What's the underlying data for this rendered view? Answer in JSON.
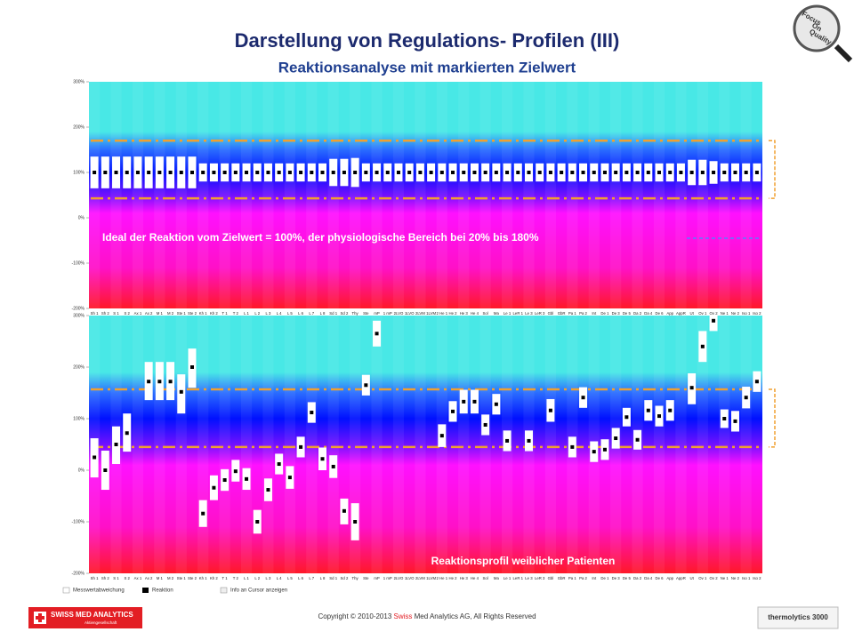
{
  "header": {
    "title": "Darstellung von Regulations- Profilen (III)",
    "subtitle": "Reaktionsanalyse mit markierten Zielwert"
  },
  "badge": [
    "Focus",
    "On",
    "Quality"
  ],
  "chart_data": [
    {
      "type": "range-dot",
      "annotation": "Ideal der Reaktion vom Zielwert = 100%, der physiologische Bereich bei 20% bis 180%",
      "categories": [
        "Sh 1",
        "Sh 2",
        "S 1",
        "S 2",
        "Ax 1",
        "Ax 2",
        "M 1",
        "M 2",
        "Ste 1",
        "Ste 2",
        "Kh 1",
        "Kh 2",
        "T 1",
        "T 2",
        "L 1",
        "L 2",
        "L 3",
        "L 4",
        "L 5",
        "L 6",
        "L 7",
        "L 8",
        "Sd 1",
        "Sd 2",
        "Thy",
        "Ste",
        "mP",
        "1 mP",
        "2LVO",
        "1LVO",
        "2LVM",
        "1LVM",
        "2 He 1",
        "He 2",
        "He 3",
        "He 4",
        "Sol",
        "Ma",
        "Le 1",
        "LeR 1",
        "Le 3",
        "LeR 3",
        "Gbl",
        "GbR",
        "Pa 1",
        "Pa 2",
        "Int",
        "De 1",
        "De 3",
        "De 5",
        "Da 2",
        "Da 4",
        "De 6",
        "App",
        "AppR",
        "Ut",
        "Ov 1",
        "Ov 2",
        "Ne 1",
        "Ne 2",
        "Iso 1",
        "Iso 2"
      ],
      "values": [
        100,
        100,
        100,
        100,
        100,
        100,
        100,
        100,
        100,
        100,
        100,
        100,
        100,
        100,
        100,
        100,
        100,
        100,
        100,
        100,
        100,
        100,
        100,
        100,
        100,
        100,
        100,
        100,
        100,
        100,
        100,
        100,
        100,
        100,
        100,
        100,
        100,
        100,
        100,
        100,
        100,
        100,
        100,
        100,
        100,
        100,
        100,
        100,
        100,
        100,
        100,
        100,
        100,
        100,
        100,
        100,
        100,
        100,
        100,
        100,
        100,
        100
      ],
      "range_low": [
        65,
        65,
        65,
        65,
        65,
        65,
        65,
        65,
        65,
        65,
        80,
        80,
        80,
        80,
        80,
        80,
        80,
        80,
        80,
        80,
        80,
        80,
        70,
        70,
        68,
        80,
        80,
        80,
        80,
        80,
        80,
        80,
        80,
        80,
        80,
        80,
        80,
        80,
        80,
        80,
        80,
        80,
        80,
        80,
        80,
        80,
        80,
        80,
        80,
        80,
        80,
        80,
        80,
        80,
        80,
        72,
        72,
        75,
        80,
        80,
        80,
        80
      ],
      "range_high": [
        135,
        135,
        135,
        135,
        135,
        135,
        135,
        135,
        135,
        135,
        120,
        120,
        120,
        120,
        120,
        120,
        120,
        120,
        120,
        120,
        120,
        120,
        130,
        130,
        132,
        120,
        120,
        120,
        120,
        120,
        120,
        120,
        120,
        120,
        120,
        120,
        120,
        120,
        120,
        120,
        120,
        120,
        120,
        120,
        120,
        120,
        120,
        120,
        120,
        120,
        120,
        120,
        120,
        120,
        120,
        128,
        128,
        125,
        120,
        120,
        120,
        120
      ],
      "reference_lines": [
        170,
        43
      ],
      "box_color": "#ffffff",
      "dot_color": "#000000",
      "reference_color": "#f0a030",
      "ylim": [
        -200,
        300
      ],
      "yticks": [
        {
          "value": -200,
          "label": "-200%"
        },
        {
          "value": -100,
          "label": "-100%"
        },
        {
          "value": 0,
          "label": "0%"
        },
        {
          "value": 100,
          "label": "100%"
        },
        {
          "value": 200,
          "label": "200%"
        },
        {
          "value": 300,
          "label": "300%"
        }
      ],
      "grid": false
    },
    {
      "type": "range-dot",
      "annotation": "Reaktionsprofil weiblicher Patienten",
      "categories": [
        "Sh 1",
        "Sh 2",
        "S 1",
        "S 2",
        "Ax 1",
        "Ax 2",
        "M 1",
        "M 2",
        "Ste 1",
        "Ste 2",
        "Kh 1",
        "Kh 2",
        "T 1",
        "T 2",
        "L 1",
        "L 2",
        "L 3",
        "L 4",
        "L 5",
        "L 6",
        "L 7",
        "L 8",
        "Sd 1",
        "Sd 2",
        "Thy",
        "Ste",
        "mP",
        "1 mP",
        "2LVO",
        "1LVO",
        "2LVM",
        "1LVM",
        "2 He 1",
        "He 2",
        "He 3",
        "He 4",
        "Sol",
        "Ma",
        "Le 1",
        "LeR 1",
        "Le 3",
        "LeR 3",
        "Gbl",
        "GbR",
        "Pa 1",
        "Pa 2",
        "Int",
        "De 1",
        "De 3",
        "De 5",
        "Da 2",
        "Da 4",
        "De 6",
        "App",
        "AppR",
        "Ut",
        "Ov 1",
        "Ov 2",
        "Ne 1",
        "Ne 2",
        "Iso 1",
        "Iso 2"
      ],
      "values": [
        25,
        0,
        50,
        72,
        null,
        172,
        172,
        172,
        152,
        200,
        -84,
        -34,
        -19,
        -2,
        -17,
        -100,
        -38,
        12,
        -14,
        45,
        112,
        22,
        7,
        -79,
        -100,
        165,
        265,
        null,
        null,
        null,
        null,
        null,
        67,
        114,
        133,
        133,
        88,
        128,
        57,
        null,
        57,
        null,
        116,
        null,
        45,
        141,
        36,
        40,
        62,
        103,
        59,
        116,
        105,
        116,
        null,
        160,
        240,
        290,
        100,
        95,
        141,
        172
      ],
      "range_low": [
        -14,
        -38,
        12,
        36,
        null,
        136,
        136,
        136,
        110,
        160,
        -110,
        -58,
        -40,
        -22,
        -38,
        -123,
        -60,
        -8,
        -36,
        25,
        92,
        0,
        -15,
        -105,
        -136,
        145,
        240,
        null,
        null,
        null,
        null,
        null,
        45,
        94,
        110,
        110,
        68,
        108,
        37,
        null,
        37,
        null,
        94,
        null,
        25,
        121,
        16,
        20,
        42,
        85,
        40,
        96,
        85,
        96,
        null,
        128,
        210,
        270,
        82,
        75,
        120,
        152
      ],
      "range_high": [
        62,
        38,
        85,
        110,
        null,
        210,
        210,
        210,
        186,
        236,
        -58,
        -10,
        2,
        20,
        4,
        -77,
        -16,
        32,
        8,
        65,
        132,
        44,
        29,
        -55,
        -64,
        185,
        290,
        null,
        null,
        null,
        null,
        null,
        89,
        134,
        156,
        156,
        108,
        148,
        77,
        null,
        77,
        null,
        138,
        null,
        65,
        161,
        56,
        60,
        82,
        121,
        78,
        136,
        125,
        136,
        null,
        188,
        270,
        300,
        118,
        115,
        162,
        192
      ],
      "reference_lines": [
        157,
        45
      ],
      "box_color": "#ffffff",
      "dot_color": "#000000",
      "reference_color": "#f0a030",
      "ylim": [
        -200,
        300
      ],
      "yticks": [
        {
          "value": -200,
          "label": "-200%"
        },
        {
          "value": -100,
          "label": "-100%"
        },
        {
          "value": 0,
          "label": "0%"
        },
        {
          "value": 100,
          "label": "100%"
        },
        {
          "value": 200,
          "label": "200%"
        },
        {
          "value": 300,
          "label": "300%"
        }
      ],
      "grid": false
    }
  ],
  "legend": [
    "Messwertabweichung",
    "Reaktion",
    "Info an Cursor anzeigen"
  ],
  "footer": {
    "copyright_pre": "Copyright © 2010-2013 ",
    "copyright_red": "Swiss",
    "copyright_post": " Med Analytics AG, All Rights Reserved",
    "logo_left": "SWISS MED ANALYTICS",
    "logo_left_sub": "Aktiengesellschaft",
    "logo_right": "thermolytics 3000"
  }
}
